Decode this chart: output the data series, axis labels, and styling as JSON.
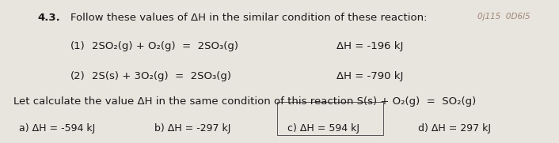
{
  "bg_color": "#e8e4de",
  "text_color": "#1a1a1a",
  "title_num": "4.3.",
  "title_text": "Follow these values of ΔH in the similar condition of these reaction:",
  "eq1_label": "(1)",
  "eq1_eq": "2SO₂(g) + O₂(g)  =  2SO₃(g)",
  "eq1_dh": "ΔH = -196 kJ",
  "eq2_label": "(2)",
  "eq2_eq": "2S(s) + 3O₂(g)  =  2SO₃(g)",
  "eq2_dh": "ΔH = -790 kJ",
  "question": "Let calculate the value ΔH in the same condition of this reaction S(s) + O₂(g)  =  SO₂(g)",
  "ans_a": "a) ΔH = -594 kJ",
  "ans_b": "b) ΔH = -297 kJ",
  "ans_c": "c) ΔH = 594 kJ",
  "ans_d": "d) ΔH = 297 kJ",
  "font_size_main": 9.5,
  "font_size_title_num": 9.5,
  "font_size_ans": 9.0,
  "faded_text": "0j115  0D6l5"
}
